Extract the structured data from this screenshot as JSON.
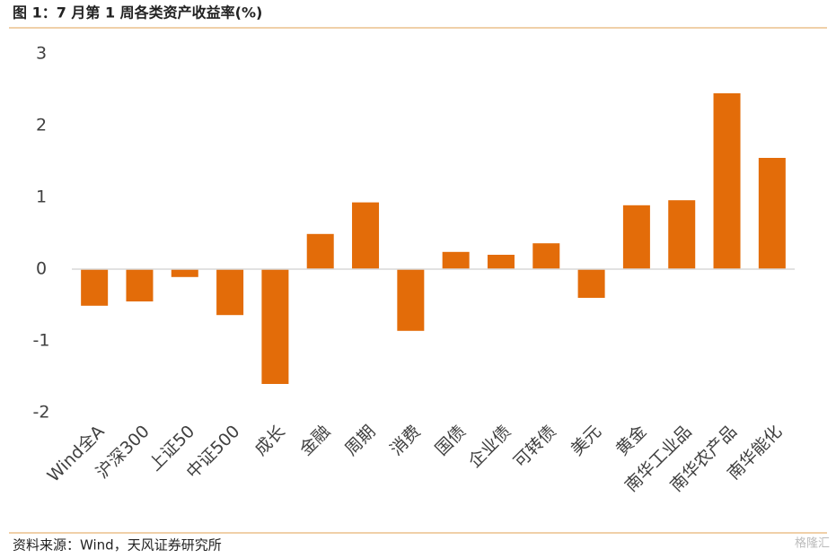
{
  "chart_data": {
    "type": "bar",
    "title": "图 1：7 月第 1 周各类资产收益率(%)",
    "source": "资料来源：Wind，天风证券研究所",
    "watermark": "格隆汇",
    "categories": [
      "Wind全A",
      "沪深300",
      "上证50",
      "中证500",
      "成长",
      "金融",
      "周期",
      "消费",
      "国债",
      "企业债",
      "可转债",
      "美元",
      "黄金",
      "南华工业品",
      "南华农产品",
      "南华能化"
    ],
    "values": [
      -0.51,
      -0.45,
      -0.11,
      -0.64,
      -1.6,
      0.49,
      0.93,
      -0.86,
      0.24,
      0.2,
      0.36,
      -0.4,
      0.89,
      0.96,
      2.45,
      1.55
    ],
    "color": "#e36c09",
    "ylim": [
      -2,
      3
    ],
    "yticks": [
      -2,
      -1,
      0,
      1,
      2,
      3
    ],
    "grid": false
  }
}
